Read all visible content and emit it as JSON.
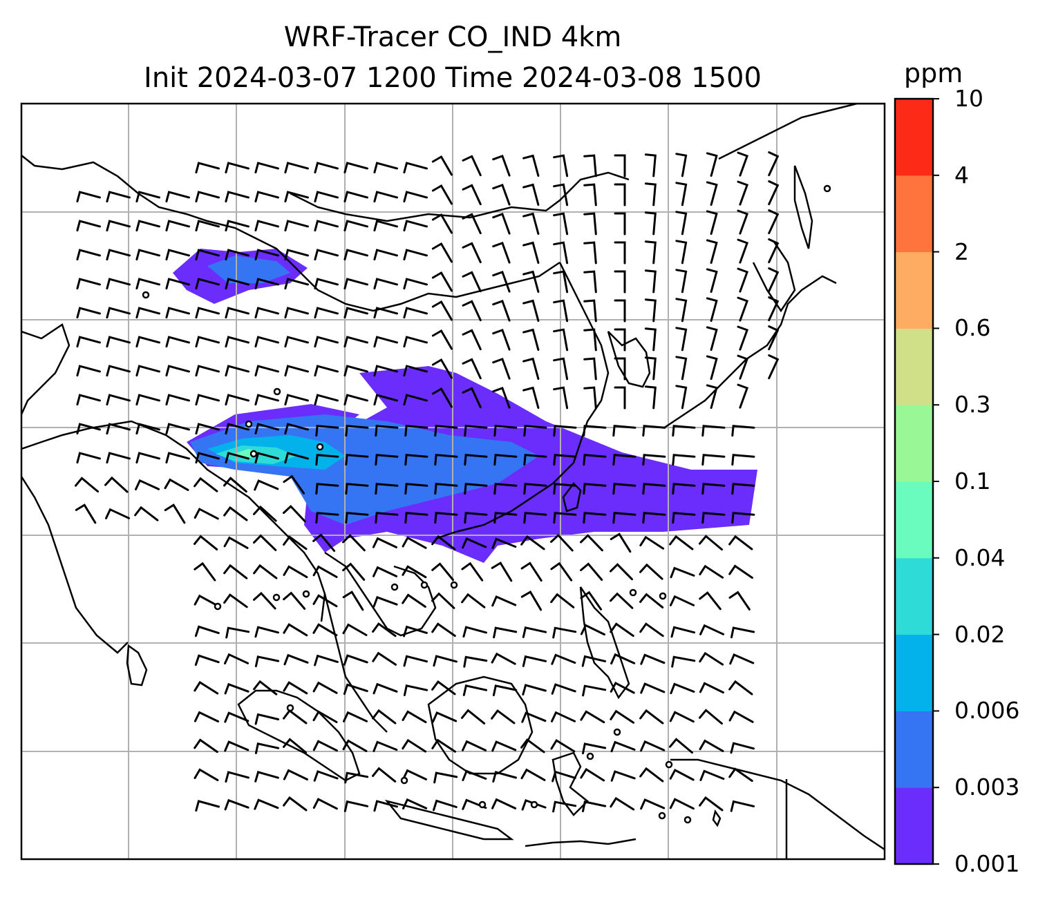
{
  "title": {
    "line1": "WRF-Tracer CO_IND 4km",
    "line2": "Init 2024-03-07 1200 Time 2024-03-08 1500"
  },
  "colorbar": {
    "unit": "ppm",
    "levels": [
      "0.001",
      "0.003",
      "0.006",
      "0.02",
      "0.04",
      "0.1",
      "0.3",
      "0.6",
      "2",
      "4",
      "10"
    ],
    "colors": [
      "#6a2dfc",
      "#3575f4",
      "#03b2ea",
      "#2fdbd6",
      "#69fcbe",
      "#99f895",
      "#cfe089",
      "#feac62",
      "#ff733d",
      "#fe2a18"
    ]
  },
  "map": {
    "frame_color": "#000000",
    "grid_color": "#b0b0b0",
    "coastline_color": "#000000",
    "wind_barb_color": "#000000"
  }
}
